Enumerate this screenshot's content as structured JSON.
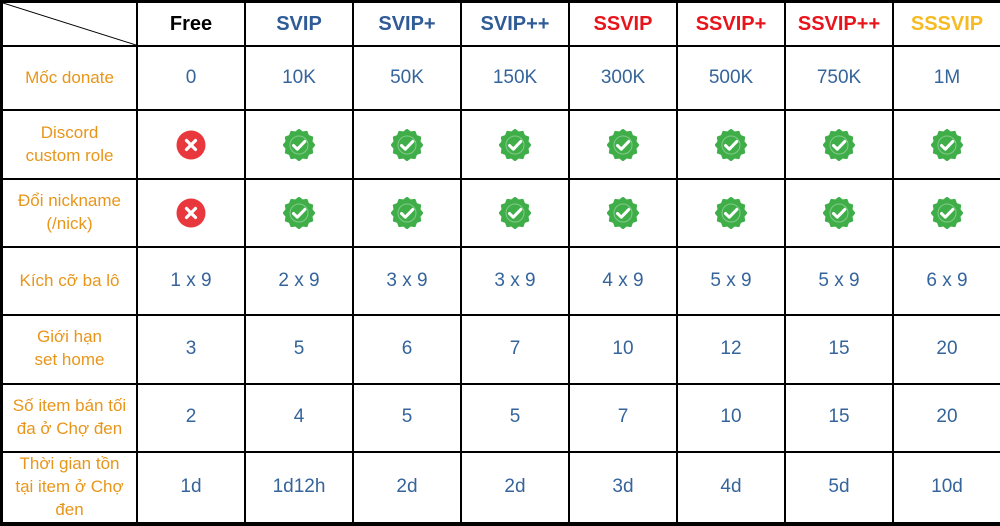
{
  "tiers": [
    {
      "name": "Free",
      "color": "#000000"
    },
    {
      "name": "SVIP",
      "color": "#2f5b96"
    },
    {
      "name": "SVIP+",
      "color": "#2f5b96"
    },
    {
      "name": "SVIP++",
      "color": "#2f5b96"
    },
    {
      "name": "SSVIP",
      "color": "#e8141c"
    },
    {
      "name": "SSVIP+",
      "color": "#e8141c"
    },
    {
      "name": "SSVIP++",
      "color": "#e8141c"
    },
    {
      "name": "SSSVIP",
      "color": "#f6bb23"
    }
  ],
  "rows": [
    {
      "label": "Mốc donate",
      "values": [
        "0",
        "10K",
        "50K",
        "150K",
        "300K",
        "500K",
        "750K",
        "1M"
      ]
    },
    {
      "label": "Discord\ncustom role",
      "values": [
        false,
        true,
        true,
        true,
        true,
        true,
        true,
        true
      ]
    },
    {
      "label": "Đổi nickname\n(/nick)",
      "values": [
        false,
        true,
        true,
        true,
        true,
        true,
        true,
        true
      ]
    },
    {
      "label": "Kích cỡ ba lô",
      "values": [
        "1 x 9",
        "2 x 9",
        "3 x 9",
        "3 x 9",
        "4 x 9",
        "5 x 9",
        "5 x 9",
        "6 x 9"
      ]
    },
    {
      "label": "Giới hạn\nset home",
      "values": [
        "3",
        "5",
        "6",
        "7",
        "10",
        "12",
        "15",
        "20"
      ]
    },
    {
      "label": "Số item bán tối\nđa ở Chợ đen",
      "values": [
        "2",
        "4",
        "5",
        "5",
        "7",
        "10",
        "15",
        "20"
      ]
    },
    {
      "label": "Thời gian tồn\ntại item ở Chợ\nđen",
      "values": [
        "1d",
        "1d12h",
        "2d",
        "2d",
        "3d",
        "4d",
        "5d",
        "10d"
      ]
    }
  ],
  "colors": {
    "label_text": "#e8961a",
    "value_text": "#35649b",
    "check_badge": "#3fae49",
    "cross_badge": "#e8383d"
  },
  "icons": {
    "yes": "check-badge-icon",
    "no": "cross-circle-icon"
  }
}
